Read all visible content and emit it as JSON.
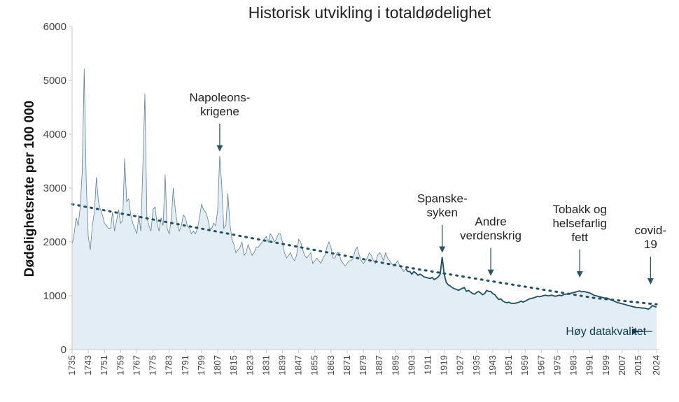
{
  "chart_data": {
    "type": "area",
    "title": "Historisk utvikling i totaldødelighet",
    "xlabel": "",
    "ylabel": "Dødelighetsrate per 100 000",
    "xlim": [
      1735,
      2024
    ],
    "ylim": [
      0,
      6000
    ],
    "yticks": [
      0,
      1000,
      2000,
      3000,
      4000,
      5000,
      6000
    ],
    "xticks": [
      1735,
      1743,
      1751,
      1759,
      1767,
      1775,
      1783,
      1791,
      1799,
      1807,
      1815,
      1823,
      1831,
      1839,
      1847,
      1855,
      1863,
      1871,
      1879,
      1887,
      1895,
      1903,
      1911,
      1919,
      1927,
      1935,
      1943,
      1951,
      1959,
      1967,
      1975,
      1983,
      1991,
      1999,
      2007,
      2015,
      2024
    ],
    "grid": false,
    "series": [
      {
        "values": [
          [
            1735,
            1950
          ],
          [
            1736,
            2150
          ],
          [
            1737,
            2450
          ],
          [
            1738,
            2300
          ],
          [
            1739,
            2650
          ],
          [
            1740,
            3300
          ],
          [
            1741,
            5220
          ],
          [
            1742,
            3100
          ],
          [
            1743,
            2100
          ],
          [
            1744,
            1850
          ],
          [
            1745,
            2300
          ],
          [
            1746,
            2550
          ],
          [
            1747,
            3200
          ],
          [
            1748,
            2750
          ],
          [
            1749,
            2600
          ],
          [
            1750,
            2500
          ],
          [
            1751,
            2350
          ],
          [
            1752,
            2300
          ],
          [
            1753,
            2250
          ],
          [
            1754,
            2250
          ],
          [
            1755,
            2550
          ],
          [
            1756,
            2200
          ],
          [
            1757,
            2400
          ],
          [
            1758,
            2600
          ],
          [
            1759,
            2350
          ],
          [
            1760,
            2400
          ],
          [
            1761,
            3550
          ],
          [
            1762,
            2750
          ],
          [
            1763,
            2800
          ],
          [
            1764,
            2500
          ],
          [
            1765,
            2350
          ],
          [
            1766,
            2250
          ],
          [
            1767,
            2150
          ],
          [
            1768,
            2500
          ],
          [
            1769,
            2200
          ],
          [
            1770,
            3400
          ],
          [
            1771,
            4750
          ],
          [
            1772,
            2450
          ],
          [
            1773,
            2300
          ],
          [
            1774,
            2200
          ],
          [
            1775,
            2600
          ],
          [
            1776,
            2650
          ],
          [
            1777,
            2350
          ],
          [
            1778,
            2200
          ],
          [
            1779,
            2450
          ],
          [
            1780,
            2300
          ],
          [
            1781,
            3250
          ],
          [
            1782,
            2250
          ],
          [
            1783,
            2150
          ],
          [
            1784,
            2400
          ],
          [
            1785,
            3000
          ],
          [
            1786,
            2600
          ],
          [
            1787,
            2350
          ],
          [
            1788,
            2200
          ],
          [
            1789,
            2300
          ],
          [
            1790,
            2500
          ],
          [
            1791,
            2450
          ],
          [
            1792,
            2300
          ],
          [
            1793,
            2250
          ],
          [
            1794,
            2150
          ],
          [
            1795,
            2200
          ],
          [
            1796,
            2150
          ],
          [
            1797,
            2250
          ],
          [
            1798,
            2450
          ],
          [
            1799,
            2700
          ],
          [
            1800,
            2600
          ],
          [
            1801,
            2550
          ],
          [
            1802,
            2450
          ],
          [
            1803,
            2250
          ],
          [
            1804,
            2250
          ],
          [
            1805,
            2350
          ],
          [
            1806,
            2300
          ],
          [
            1807,
            2600
          ],
          [
            1808,
            3600
          ],
          [
            1809,
            3050
          ],
          [
            1810,
            2250
          ],
          [
            1811,
            2300
          ],
          [
            1812,
            2900
          ],
          [
            1813,
            2350
          ],
          [
            1814,
            2050
          ],
          [
            1815,
            1950
          ],
          [
            1816,
            1800
          ],
          [
            1817,
            1850
          ],
          [
            1818,
            1900
          ],
          [
            1819,
            2000
          ],
          [
            1820,
            1750
          ],
          [
            1821,
            1800
          ],
          [
            1822,
            1950
          ],
          [
            1823,
            1850
          ],
          [
            1824,
            1750
          ],
          [
            1825,
            1800
          ],
          [
            1826,
            1900
          ],
          [
            1827,
            1900
          ],
          [
            1828,
            1950
          ],
          [
            1829,
            2000
          ],
          [
            1830,
            2050
          ],
          [
            1831,
            2100
          ],
          [
            1832,
            2000
          ],
          [
            1833,
            2150
          ],
          [
            1834,
            2100
          ],
          [
            1835,
            2000
          ],
          [
            1836,
            2050
          ],
          [
            1837,
            2150
          ],
          [
            1838,
            2150
          ],
          [
            1839,
            2000
          ],
          [
            1840,
            1800
          ],
          [
            1841,
            1700
          ],
          [
            1842,
            1750
          ],
          [
            1843,
            1800
          ],
          [
            1844,
            1700
          ],
          [
            1845,
            1650
          ],
          [
            1846,
            1750
          ],
          [
            1847,
            2050
          ],
          [
            1848,
            2000
          ],
          [
            1849,
            1850
          ],
          [
            1850,
            1750
          ],
          [
            1851,
            1700
          ],
          [
            1852,
            1750
          ],
          [
            1853,
            1800
          ],
          [
            1854,
            1600
          ],
          [
            1855,
            1650
          ],
          [
            1856,
            1700
          ],
          [
            1857,
            1650
          ],
          [
            1858,
            1600
          ],
          [
            1859,
            1700
          ],
          [
            1860,
            1750
          ],
          [
            1861,
            1900
          ],
          [
            1862,
            2000
          ],
          [
            1863,
            1900
          ],
          [
            1864,
            1700
          ],
          [
            1865,
            1700
          ],
          [
            1866,
            1800
          ],
          [
            1867,
            1800
          ],
          [
            1868,
            1650
          ],
          [
            1869,
            1600
          ],
          [
            1870,
            1550
          ],
          [
            1871,
            1600
          ],
          [
            1872,
            1650
          ],
          [
            1873,
            1650
          ],
          [
            1874,
            1700
          ],
          [
            1875,
            1850
          ],
          [
            1876,
            1900
          ],
          [
            1877,
            1750
          ],
          [
            1878,
            1650
          ],
          [
            1879,
            1600
          ],
          [
            1880,
            1650
          ],
          [
            1881,
            1700
          ],
          [
            1882,
            1800
          ],
          [
            1883,
            1750
          ],
          [
            1884,
            1650
          ],
          [
            1885,
            1600
          ],
          [
            1886,
            1750
          ],
          [
            1887,
            1800
          ],
          [
            1888,
            1750
          ],
          [
            1889,
            1650
          ],
          [
            1890,
            1800
          ],
          [
            1891,
            1700
          ],
          [
            1892,
            1650
          ],
          [
            1893,
            1600
          ],
          [
            1894,
            1550
          ],
          [
            1895,
            1600
          ],
          [
            1896,
            1650
          ],
          [
            1897,
            1550
          ],
          [
            1898,
            1500
          ],
          [
            1899,
            1450
          ],
          [
            1900,
            1500
          ],
          [
            1901,
            1450
          ],
          [
            1902,
            1450
          ],
          [
            1903,
            1400
          ],
          [
            1904,
            1450
          ],
          [
            1905,
            1420
          ],
          [
            1906,
            1380
          ],
          [
            1907,
            1400
          ],
          [
            1908,
            1380
          ],
          [
            1909,
            1350
          ],
          [
            1910,
            1340
          ],
          [
            1911,
            1330
          ],
          [
            1912,
            1320
          ],
          [
            1913,
            1340
          ],
          [
            1914,
            1300
          ],
          [
            1915,
            1320
          ],
          [
            1916,
            1350
          ],
          [
            1917,
            1400
          ],
          [
            1918,
            1720
          ],
          [
            1919,
            1400
          ],
          [
            1920,
            1250
          ],
          [
            1921,
            1200
          ],
          [
            1922,
            1180
          ],
          [
            1923,
            1150
          ],
          [
            1924,
            1130
          ],
          [
            1925,
            1120
          ],
          [
            1926,
            1100
          ],
          [
            1927,
            1120
          ],
          [
            1928,
            1140
          ],
          [
            1929,
            1150
          ],
          [
            1930,
            1080
          ],
          [
            1931,
            1100
          ],
          [
            1932,
            1070
          ],
          [
            1933,
            1040
          ],
          [
            1934,
            1030
          ],
          [
            1935,
            1060
          ],
          [
            1936,
            1080
          ],
          [
            1937,
            1050
          ],
          [
            1938,
            1020
          ],
          [
            1939,
            1040
          ],
          [
            1940,
            1100
          ],
          [
            1941,
            1080
          ],
          [
            1942,
            1080
          ],
          [
            1943,
            1040
          ],
          [
            1944,
            1020
          ],
          [
            1945,
            970
          ],
          [
            1946,
            930
          ],
          [
            1947,
            940
          ],
          [
            1948,
            900
          ],
          [
            1949,
            880
          ],
          [
            1950,
            870
          ],
          [
            1951,
            880
          ],
          [
            1952,
            860
          ],
          [
            1953,
            860
          ],
          [
            1954,
            860
          ],
          [
            1955,
            870
          ],
          [
            1956,
            880
          ],
          [
            1957,
            900
          ],
          [
            1958,
            880
          ],
          [
            1959,
            900
          ],
          [
            1960,
            920
          ],
          [
            1961,
            940
          ],
          [
            1962,
            950
          ],
          [
            1963,
            960
          ],
          [
            1964,
            970
          ],
          [
            1965,
            990
          ],
          [
            1966,
            980
          ],
          [
            1967,
            990
          ],
          [
            1968,
            1000
          ],
          [
            1969,
            1010
          ],
          [
            1970,
            1000
          ],
          [
            1971,
            1000
          ],
          [
            1972,
            1010
          ],
          [
            1973,
            1000
          ],
          [
            1974,
            990
          ],
          [
            1975,
            1000
          ],
          [
            1976,
            1010
          ],
          [
            1977,
            1000
          ],
          [
            1978,
            1020
          ],
          [
            1979,
            1030
          ],
          [
            1980,
            1030
          ],
          [
            1981,
            1040
          ],
          [
            1982,
            1050
          ],
          [
            1983,
            1060
          ],
          [
            1984,
            1070
          ],
          [
            1985,
            1080
          ],
          [
            1986,
            1090
          ],
          [
            1987,
            1070
          ],
          [
            1988,
            1080
          ],
          [
            1989,
            1070
          ],
          [
            1990,
            1060
          ],
          [
            1991,
            1050
          ],
          [
            1992,
            1030
          ],
          [
            1993,
            1010
          ],
          [
            1994,
            1000
          ],
          [
            1995,
            990
          ],
          [
            1996,
            980
          ],
          [
            1997,
            970
          ],
          [
            1998,
            960
          ],
          [
            1999,
            960
          ],
          [
            2000,
            950
          ],
          [
            2001,
            930
          ],
          [
            2002,
            920
          ],
          [
            2003,
            900
          ],
          [
            2004,
            880
          ],
          [
            2005,
            870
          ],
          [
            2006,
            860
          ],
          [
            2007,
            850
          ],
          [
            2008,
            840
          ],
          [
            2009,
            830
          ],
          [
            2010,
            820
          ],
          [
            2011,
            810
          ],
          [
            2012,
            800
          ],
          [
            2013,
            790
          ],
          [
            2014,
            785
          ],
          [
            2015,
            780
          ],
          [
            2016,
            775
          ],
          [
            2017,
            770
          ],
          [
            2018,
            770
          ],
          [
            2019,
            760
          ],
          [
            2020,
            750
          ],
          [
            2021,
            780
          ],
          [
            2022,
            820
          ],
          [
            2023,
            800
          ],
          [
            2024,
            790
          ]
        ]
      }
    ],
    "trend": {
      "style": "dotted",
      "points": [
        [
          1735,
          2700
        ],
        [
          1900,
          1530
        ],
        [
          1993,
          960
        ],
        [
          2024,
          840
        ]
      ]
    },
    "data_quality_from_year": 1900,
    "annotations": [
      {
        "lines": [
          "Napoleons-",
          "krigene"
        ],
        "x": 1808,
        "y": 3600
      },
      {
        "lines": [
          "Spanske-",
          "syken"
        ],
        "x": 1918,
        "y": 1720
      },
      {
        "lines": [
          "Andre",
          "verdenskrig"
        ],
        "x": 1942,
        "y": 1290
      },
      {
        "lines": [
          "Tobakk og",
          "helsefarlig",
          "fett"
        ],
        "x": 1986,
        "y": 1260
      },
      {
        "lines": [
          "covid-",
          "19"
        ],
        "x": 2021,
        "y": 1130
      }
    ],
    "quality_label": "Høy datakvalitet",
    "colors": {
      "fill": "#e3edf5",
      "line": "#1f4f63",
      "trend": "#1f4f63",
      "text": "#222222"
    }
  }
}
